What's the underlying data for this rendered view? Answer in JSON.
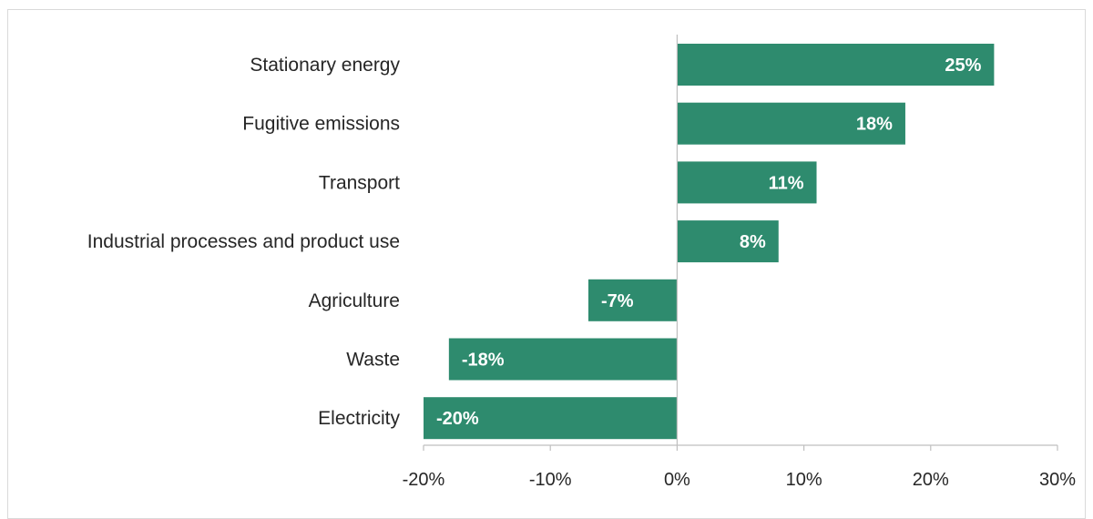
{
  "chart_data": {
    "type": "bar",
    "orientation": "horizontal",
    "title": "",
    "xlabel": "",
    "ylabel": "",
    "categories": [
      "Stationary energy",
      "Fugitive emissions",
      "Transport",
      "Industrial processes and product use",
      "Agriculture",
      "Waste",
      "Electricity"
    ],
    "values": [
      25,
      18,
      11,
      8,
      -7,
      -18,
      -20
    ],
    "value_labels": [
      "25%",
      "18%",
      "11%",
      "8%",
      "-7%",
      "-18%",
      "-20%"
    ],
    "xlim": [
      -20,
      30
    ],
    "xticks": [
      -20,
      -10,
      0,
      10,
      20,
      30
    ],
    "xtick_labels": [
      "-20%",
      "-10%",
      "0%",
      "10%",
      "20%",
      "30%"
    ],
    "grid": false,
    "legend": "none",
    "bar_color": "#2e8b6e",
    "axis_color": "#bfbfbf"
  }
}
